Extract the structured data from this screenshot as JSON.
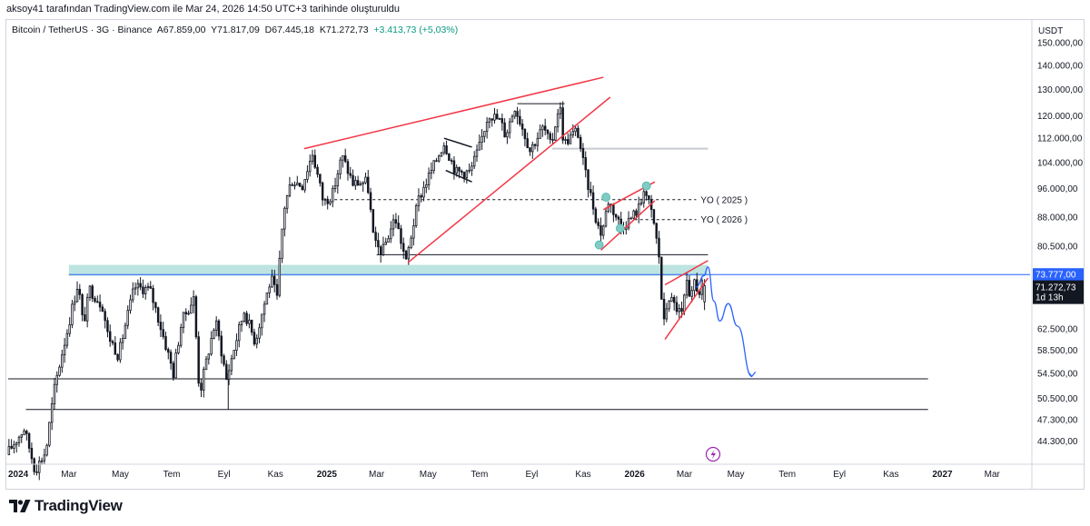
{
  "header": {
    "attribution": "aksoy41 tarafından TradingView.com ile Mar 24, 2026 14:50 UTC+3 tarihinde oluşturuldu"
  },
  "legend": {
    "symbol": "Bitcoin / TetherUS · 3G · Binance",
    "open": "A67.859,00",
    "high": "Y71.817,09",
    "low": "D67.445,18",
    "close": "K71.272,73",
    "change": "+3.413,73 (+5,03%)"
  },
  "footer": {
    "brand": "TradingView"
  },
  "colors": {
    "up": "#131722",
    "down": "#131722",
    "trend": "#f23645",
    "level": "#131722",
    "zone": "#b2dfdb",
    "forecast": "#2962ff",
    "marker": "#80cbc4",
    "price": "#2962ff"
  },
  "chart_data": {
    "type": "candlestick",
    "title": "Bitcoin / TetherUS · 3G · Binance",
    "interval": "3 days",
    "ylabel": "USDT",
    "yscale": "log",
    "ylim": [
      41500,
      160000
    ],
    "x_range": [
      "2023-12-20",
      "2027-04-15"
    ],
    "y_ticks": [
      {
        "v": 150000,
        "label": "150.000,00"
      },
      {
        "v": 140000,
        "label": "140.000,00"
      },
      {
        "v": 130000,
        "label": "130.000,00"
      },
      {
        "v": 120000,
        "label": "120.000,00"
      },
      {
        "v": 112000,
        "label": "112.000,00"
      },
      {
        "v": 104000,
        "label": "104.000,00"
      },
      {
        "v": 96000,
        "label": "96.000,00"
      },
      {
        "v": 88000,
        "label": "88.000,00"
      },
      {
        "v": 80500,
        "label": "80.500,00"
      },
      {
        "v": 62500,
        "label": "62.500,00"
      },
      {
        "v": 58500,
        "label": "58.500,00"
      },
      {
        "v": 54500,
        "label": "54.500,00"
      },
      {
        "v": 50500,
        "label": "50.500,00"
      },
      {
        "v": 47300,
        "label": "47.300,00"
      },
      {
        "v": 44300,
        "label": "44.300,00"
      }
    ],
    "x_ticks": [
      {
        "t": "2024-01-01",
        "label": "2024",
        "bold": true
      },
      {
        "t": "2024-03-01",
        "label": "Mar"
      },
      {
        "t": "2024-05-01",
        "label": "May"
      },
      {
        "t": "2024-07-01",
        "label": "Tem"
      },
      {
        "t": "2024-09-01",
        "label": "Eyl"
      },
      {
        "t": "2024-11-01",
        "label": "Kas"
      },
      {
        "t": "2025-01-01",
        "label": "2025",
        "bold": true
      },
      {
        "t": "2025-03-01",
        "label": "Mar"
      },
      {
        "t": "2025-05-01",
        "label": "May"
      },
      {
        "t": "2025-07-01",
        "label": "Tem"
      },
      {
        "t": "2025-09-01",
        "label": "Eyl"
      },
      {
        "t": "2025-11-01",
        "label": "Kas"
      },
      {
        "t": "2026-01-01",
        "label": "2026",
        "bold": true
      },
      {
        "t": "2026-03-01",
        "label": "Mar"
      },
      {
        "t": "2026-05-01",
        "label": "May"
      },
      {
        "t": "2026-07-01",
        "label": "Tem"
      },
      {
        "t": "2026-09-01",
        "label": "Eyl"
      },
      {
        "t": "2026-11-01",
        "label": "Kas"
      },
      {
        "t": "2027-01-01",
        "label": "2027",
        "bold": true
      },
      {
        "t": "2027-03-01",
        "label": "Mar"
      }
    ],
    "price_path": [
      [
        "2023-12-20",
        42500
      ],
      [
        "2024-01-10",
        46000
      ],
      [
        "2024-01-23",
        40500
      ],
      [
        "2024-02-05",
        43000
      ],
      [
        "2024-02-15",
        52000
      ],
      [
        "2024-03-01",
        62000
      ],
      [
        "2024-03-14",
        72000
      ],
      [
        "2024-03-20",
        63000
      ],
      [
        "2024-03-28",
        70500
      ],
      [
        "2024-04-12",
        67000
      ],
      [
        "2024-04-18",
        61500
      ],
      [
        "2024-05-01",
        57500
      ],
      [
        "2024-05-20",
        71000
      ],
      [
        "2024-06-07",
        70500
      ],
      [
        "2024-06-24",
        60500
      ],
      [
        "2024-07-05",
        54500
      ],
      [
        "2024-07-15",
        64000
      ],
      [
        "2024-07-29",
        68500
      ],
      [
        "2024-08-05",
        51000
      ],
      [
        "2024-08-24",
        64000
      ],
      [
        "2024-09-06",
        53500
      ],
      [
        "2024-09-27",
        66000
      ],
      [
        "2024-10-10",
        60000
      ],
      [
        "2024-10-29",
        73000
      ],
      [
        "2024-11-05",
        68500
      ],
      [
        "2024-11-13",
        90000
      ],
      [
        "2024-11-22",
        98500
      ],
      [
        "2024-12-05",
        97000
      ],
      [
        "2024-12-17",
        107000
      ],
      [
        "2024-12-30",
        92000
      ],
      [
        "2025-01-10",
        94500
      ],
      [
        "2025-01-21",
        106000
      ],
      [
        "2025-02-03",
        97500
      ],
      [
        "2025-02-20",
        98000
      ],
      [
        "2025-02-28",
        81000
      ],
      [
        "2025-03-10",
        79000
      ],
      [
        "2025-03-25",
        88000
      ],
      [
        "2025-04-07",
        76500
      ],
      [
        "2025-04-22",
        93000
      ],
      [
        "2025-05-10",
        103000
      ],
      [
        "2025-05-22",
        110500
      ],
      [
        "2025-06-05",
        101000
      ],
      [
        "2025-06-22",
        101000
      ],
      [
        "2025-07-03",
        109000
      ],
      [
        "2025-07-14",
        121000
      ],
      [
        "2025-07-28",
        118000
      ],
      [
        "2025-08-03",
        113000
      ],
      [
        "2025-08-14",
        123500
      ],
      [
        "2025-09-01",
        108000
      ],
      [
        "2025-09-17",
        116000
      ],
      [
        "2025-09-26",
        109000
      ],
      [
        "2025-10-06",
        125000
      ],
      [
        "2025-10-11",
        110000
      ],
      [
        "2025-10-27",
        115000
      ],
      [
        "2025-11-05",
        101000
      ],
      [
        "2025-11-20",
        86000
      ],
      [
        "2025-11-25",
        83500
      ],
      [
        "2025-12-03",
        92500
      ],
      [
        "2025-12-18",
        85500
      ],
      [
        "2025-12-29",
        87500
      ],
      [
        "2026-01-10",
        91000
      ],
      [
        "2026-01-14",
        96500
      ],
      [
        "2026-01-25",
        87500
      ],
      [
        "2026-02-01",
        78000
      ],
      [
        "2026-02-06",
        62500
      ],
      [
        "2026-02-12",
        69000
      ],
      [
        "2026-02-20",
        67000
      ],
      [
        "2026-03-01",
        65000
      ],
      [
        "2026-03-05",
        72500
      ],
      [
        "2026-03-10",
        67000
      ],
      [
        "2026-03-16",
        73500
      ],
      [
        "2026-03-19",
        69500
      ],
      [
        "2026-03-24",
        71272.73
      ]
    ],
    "last_candle": {
      "open": 67859.0,
      "high": 71817.09,
      "low": 67445.18,
      "close": 71272.73
    },
    "change": 3413.73,
    "change_pct": 5.03,
    "horizontal_levels": [
      {
        "y": 53600,
        "from": "2023-12-20",
        "to": "2026-12-15"
      },
      {
        "y": 48800,
        "from": "2024-01-10",
        "to": "2026-12-15"
      },
      {
        "y": 78400,
        "from": "2025-03-01",
        "to": "2026-03-29"
      },
      {
        "y": 108500,
        "from": "2025-09-25",
        "to": "2026-03-29",
        "style": "grey"
      },
      {
        "y": 92800,
        "from": "2025-01-10",
        "to": "2026-03-15",
        "style": "dashed",
        "label": "YO ( 2025 )"
      },
      {
        "y": 87300,
        "from": "2026-01-01",
        "to": "2026-03-15",
        "style": "dashed",
        "label": "YO ( 2026 )"
      },
      {
        "y": 124500,
        "from": "2025-08-15",
        "to": "2025-10-10",
        "style": "thin"
      }
    ],
    "vertical_lines": [
      {
        "t": "2024-09-06",
        "from": 48800,
        "to": 54500
      }
    ],
    "zone": {
      "from": "2024-03-01",
      "to": "2026-03-29",
      "y1": 73500,
      "y2": 76000,
      "label": "support-resistance zone"
    },
    "trendlines": [
      {
        "name": "upper channel",
        "p1": [
          "2024-12-05",
          108500
        ],
        "p2": [
          "2025-11-25",
          135000
        ]
      },
      {
        "name": "rising support",
        "p1": [
          "2025-04-07",
          76500
        ],
        "p2": [
          "2025-12-03",
          127000
        ]
      },
      {
        "name": "bear flag top",
        "p1": [
          "2025-11-25",
          90000
        ],
        "p2": [
          "2026-01-25",
          98000
        ]
      },
      {
        "name": "bear flag bottom",
        "p1": [
          "2025-11-22",
          79500
        ],
        "p2": [
          "2026-01-25",
          92500
        ]
      },
      {
        "name": "rising wedge top",
        "p1": [
          "2026-02-06",
          71500
        ],
        "p2": [
          "2026-03-29",
          77000
        ]
      },
      {
        "name": "rising wedge bottom",
        "p1": [
          "2026-02-06",
          60500
        ],
        "p2": [
          "2026-03-29",
          73000
        ]
      },
      {
        "name": "flag top",
        "p1": [
          "2025-05-20",
          112000
        ],
        "p2": [
          "2025-06-22",
          109000
        ]
      },
      {
        "name": "flag bottom",
        "p1": [
          "2025-05-22",
          101500
        ],
        "p2": [
          "2025-06-22",
          98000
        ]
      }
    ],
    "markers": [
      {
        "t": "2025-11-28",
        "y": 93500
      },
      {
        "t": "2025-11-20",
        "y": 80800
      },
      {
        "t": "2025-12-15",
        "y": 85000
      },
      {
        "t": "2026-01-15",
        "y": 96800
      }
    ],
    "forecast_path": [
      [
        "2026-03-15",
        71000
      ],
      [
        "2026-03-24",
        73500
      ],
      [
        "2026-03-29",
        75500
      ],
      [
        "2026-04-05",
        68000
      ],
      [
        "2026-04-12",
        64000
      ],
      [
        "2026-04-22",
        67500
      ],
      [
        "2026-05-03",
        63000
      ],
      [
        "2026-05-20",
        54000
      ]
    ],
    "price_labels": [
      {
        "value": 73777.0,
        "text": "73.777,00",
        "style": "line"
      },
      {
        "value": 71272.73,
        "text": "71.272,73",
        "countdown": "1d 13h",
        "style": "last"
      }
    ],
    "annotations": [
      {
        "text": "YO ( 2025 )",
        "t": "2026-03-16",
        "y": 92800
      },
      {
        "text": "YO ( 2026 )",
        "t": "2026-03-16",
        "y": 87300
      }
    ]
  }
}
